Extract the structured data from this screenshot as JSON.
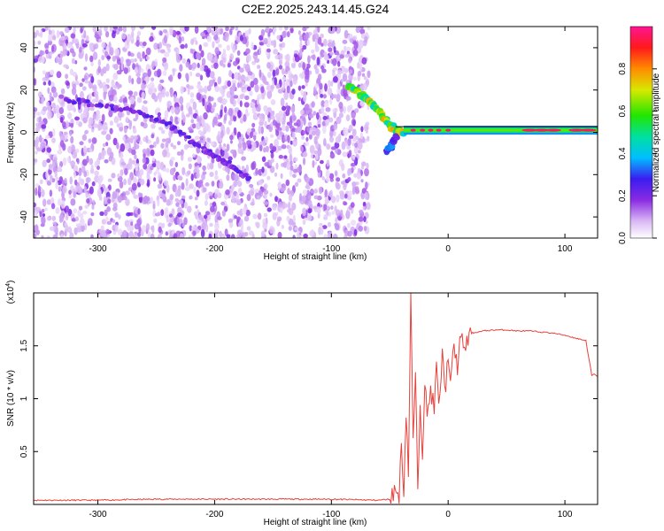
{
  "title": "C2E2.2025.243.14.45.G24",
  "chart_data": [
    {
      "type": "heatmap",
      "xlabel": "Height of straight line (km)",
      "ylabel": "Frequency (Hz)",
      "xlim": [
        -355,
        128
      ],
      "ylim": [
        -50,
        50
      ],
      "xticks": [
        -300,
        -200,
        -100,
        0,
        100
      ],
      "yticks": [
        -40,
        -20,
        0,
        20,
        40
      ],
      "colorbar": {
        "label": "Normalized spectral amplitude",
        "range": [
          0.0,
          1.0
        ],
        "ticks": [
          0.0,
          0.2,
          0.4,
          0.6,
          0.8
        ]
      },
      "features": [
        {
          "name": "noise floor",
          "x_range": [
            -355,
            -68
          ],
          "y_range": [
            -50,
            50
          ],
          "amplitude": 0.12
        },
        {
          "name": "descending track",
          "points": [
            [
              -330,
              16
            ],
            [
              -300,
              13
            ],
            [
              -270,
              10
            ],
            [
              -240,
              4
            ],
            [
              -210,
              -8
            ],
            [
              -200,
              -11
            ],
            [
              -185,
              -16
            ],
            [
              -170,
              -22
            ]
          ],
          "amplitude": 0.2
        },
        {
          "name": "carrier converging",
          "points": [
            [
              -85,
              22
            ],
            [
              -75,
              18
            ],
            [
              -68,
              15
            ],
            [
              -60,
              10
            ],
            [
              -52,
              4
            ],
            [
              -45,
              1
            ],
            [
              -38,
              0
            ]
          ],
          "amplitude": 0.6
        },
        {
          "name": "low branch",
          "points": [
            [
              -52,
              -9
            ],
            [
              -48,
              -6
            ],
            [
              -45,
              -2
            ]
          ],
          "amplitude": 0.3
        },
        {
          "name": "carrier steady",
          "x_range": [
            -38,
            128
          ],
          "y": 1,
          "amplitude": 0.85
        }
      ]
    },
    {
      "type": "line",
      "xlabel": "Height of straight line (km)",
      "ylabel": "SNR (10 * v/v)",
      "multiplier": "(x10^4)",
      "xlim": [
        -355,
        128
      ],
      "ylim": [
        0,
        2.0
      ],
      "xticks": [
        -300,
        -200,
        -100,
        0,
        100
      ],
      "yticks": [
        0.5,
        1.0,
        1.5
      ],
      "series": [
        {
          "color": "#e8413b",
          "x": [
            -355,
            -300,
            -250,
            -200,
            -150,
            -100,
            -60,
            -50,
            -45,
            -42,
            -40,
            -38,
            -36,
            -34,
            -32,
            -30,
            -28,
            -26,
            -24,
            -22,
            -20,
            -18,
            -15,
            -12,
            -10,
            -8,
            -5,
            -2,
            0,
            2,
            5,
            8,
            10,
            15,
            20,
            30,
            40,
            50,
            60,
            70,
            80,
            90,
            100,
            110,
            118,
            123,
            125,
            128
          ],
          "y": [
            0.04,
            0.04,
            0.05,
            0.05,
            0.05,
            0.05,
            0.04,
            0.05,
            0.15,
            0.05,
            0.6,
            0.1,
            0.9,
            0.3,
            1.97,
            0.6,
            1.2,
            0.1,
            1.0,
            0.5,
            1.2,
            0.8,
            1.1,
            0.9,
            1.3,
            0.9,
            1.4,
            1.1,
            1.45,
            1.1,
            1.5,
            1.3,
            1.55,
            1.5,
            1.62,
            1.64,
            1.65,
            1.65,
            1.64,
            1.64,
            1.63,
            1.62,
            1.6,
            1.57,
            1.55,
            1.22,
            1.23,
            1.21
          ]
        }
      ]
    }
  ]
}
